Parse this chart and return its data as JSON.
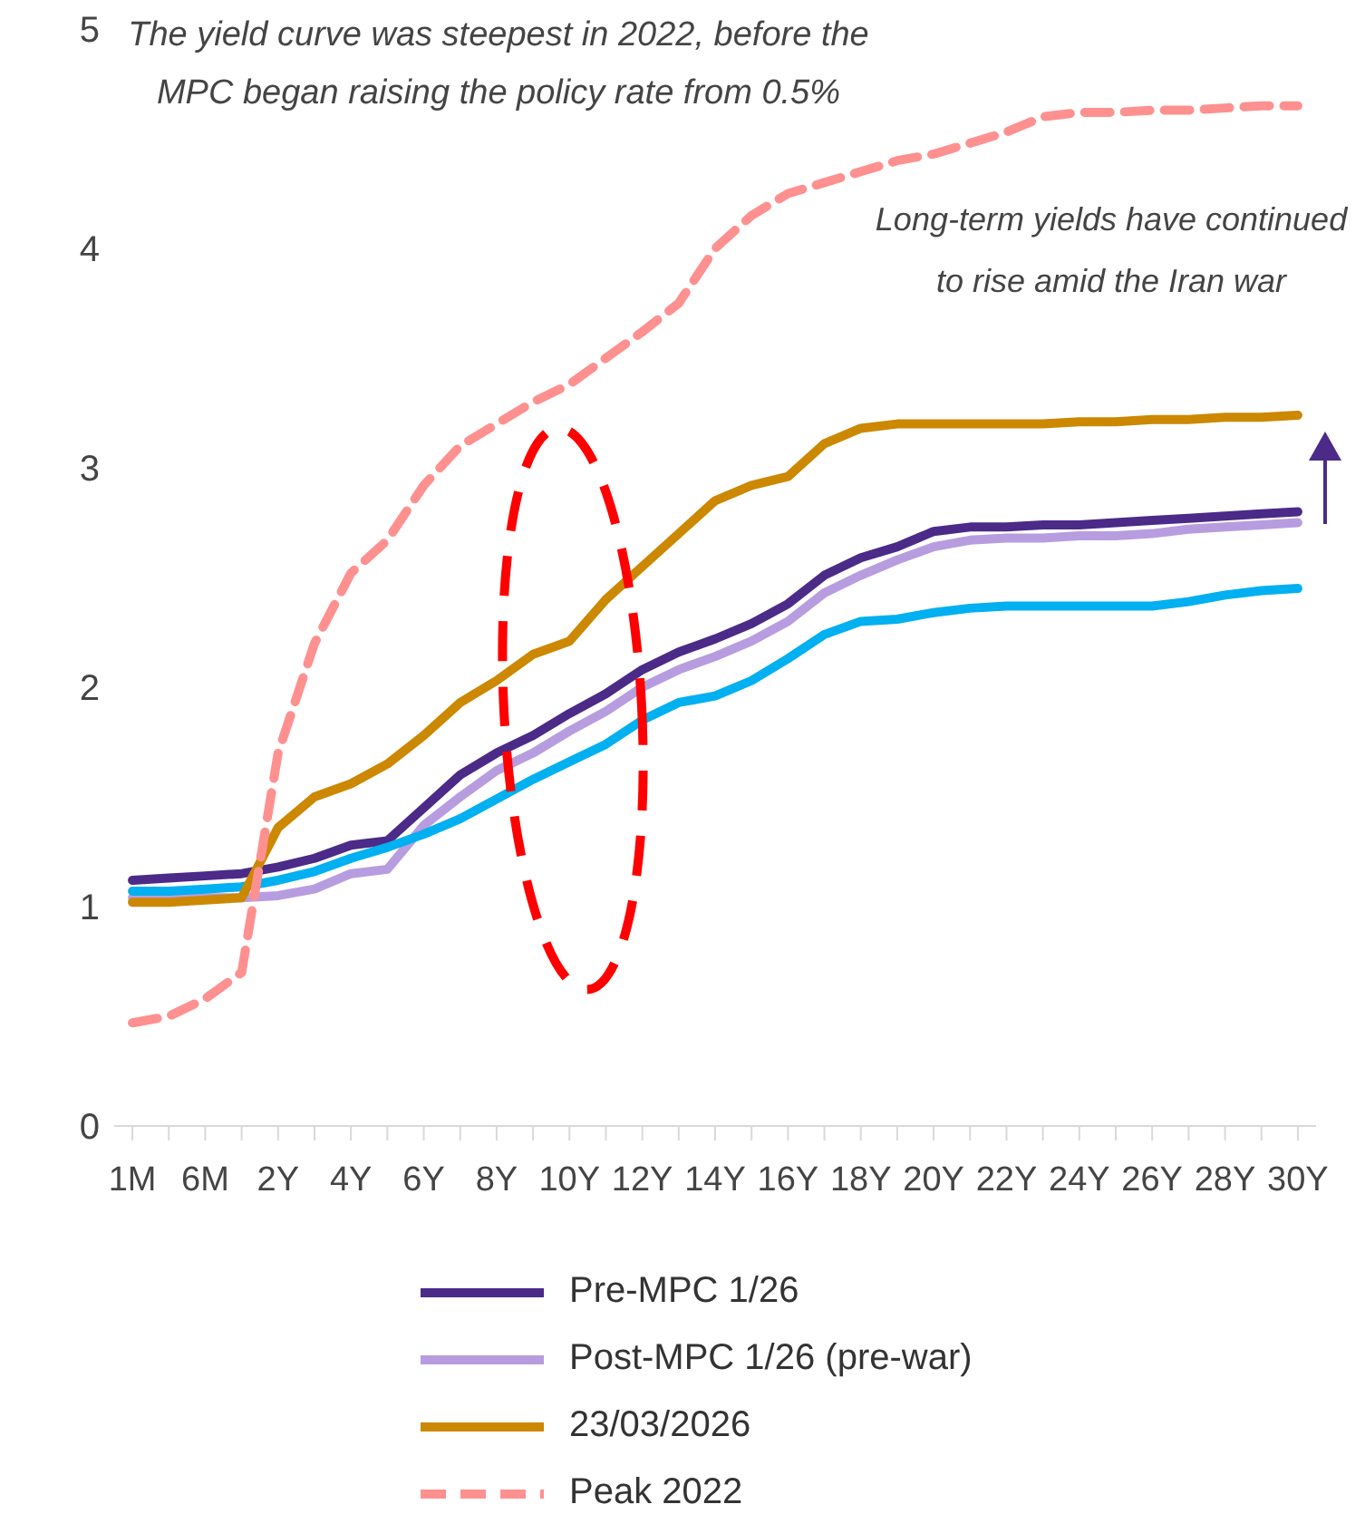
{
  "chart_data": {
    "type": "line",
    "categories": [
      "1M",
      null,
      "6M",
      null,
      "2Y",
      null,
      "4Y",
      null,
      "6Y",
      null,
      "8Y",
      null,
      "10Y",
      null,
      "12Y",
      null,
      "14Y",
      null,
      "16Y",
      null,
      "18Y",
      null,
      "20Y",
      null,
      "22Y",
      null,
      "24Y",
      null,
      "26Y",
      null,
      "28Y",
      null,
      "30Y"
    ],
    "series": [
      {
        "name": "Pre-MPC 1/26",
        "color": "#4b2a88",
        "values": [
          1.12,
          1.13,
          1.14,
          1.15,
          1.18,
          1.22,
          1.28,
          1.3,
          1.45,
          1.6,
          1.7,
          1.78,
          1.88,
          1.97,
          2.08,
          2.16,
          2.22,
          2.29,
          2.38,
          2.51,
          2.59,
          2.64,
          2.71,
          2.73,
          2.73,
          2.74,
          2.74,
          2.75,
          2.76,
          2.77,
          2.78,
          2.79,
          2.8
        ]
      },
      {
        "name": "Post-MPC 1/26 (pre-war)",
        "color": "#b79de0",
        "values": [
          1.04,
          1.04,
          1.04,
          1.04,
          1.05,
          1.08,
          1.15,
          1.17,
          1.37,
          1.5,
          1.62,
          1.7,
          1.8,
          1.89,
          2.0,
          2.08,
          2.14,
          2.21,
          2.3,
          2.43,
          2.51,
          2.58,
          2.64,
          2.67,
          2.68,
          2.68,
          2.69,
          2.69,
          2.7,
          2.72,
          2.73,
          2.74,
          2.75
        ]
      },
      {
        "color": "#00b0f0",
        "values": [
          1.07,
          1.07,
          1.08,
          1.09,
          1.12,
          1.16,
          1.22,
          1.27,
          1.33,
          1.4,
          1.49,
          1.58,
          1.66,
          1.74,
          1.85,
          1.93,
          1.96,
          2.03,
          2.13,
          2.24,
          2.3,
          2.31,
          2.34,
          2.36,
          2.37,
          2.37,
          2.37,
          2.37,
          2.37,
          2.39,
          2.42,
          2.44,
          2.45
        ]
      },
      {
        "name": "23/03/2026",
        "color": "#cc8800",
        "values": [
          1.02,
          1.02,
          1.03,
          1.04,
          1.36,
          1.5,
          1.56,
          1.65,
          1.78,
          1.93,
          2.03,
          2.15,
          2.21,
          2.4,
          2.55,
          2.7,
          2.85,
          2.92,
          2.96,
          3.11,
          3.18,
          3.2,
          3.2,
          3.2,
          3.2,
          3.2,
          3.21,
          3.21,
          3.22,
          3.22,
          3.23,
          3.23,
          3.24
        ]
      },
      {
        "name": "Peak 2022",
        "color": "#ff9090",
        "line_style": "dashed",
        "values": [
          0.47,
          0.5,
          0.58,
          0.7,
          1.7,
          2.2,
          2.52,
          2.67,
          2.92,
          3.1,
          3.2,
          3.3,
          3.38,
          3.5,
          3.62,
          3.75,
          4.0,
          4.15,
          4.25,
          4.3,
          4.35,
          4.4,
          4.43,
          4.48,
          4.53,
          4.6,
          4.62,
          4.62,
          4.63,
          4.63,
          4.64,
          4.65,
          4.65
        ]
      }
    ],
    "ylim": [
      0,
      5
    ],
    "yticks": [
      0,
      1,
      2,
      3,
      4,
      5
    ],
    "grid": false,
    "legend": "bottom",
    "marker": "none",
    "line_style": "solid",
    "annotations": [
      "The yield curve was steepest in 2022, before the MPC began raising the policy rate from 0.5%",
      "Long-term yields have continued to rise amid the Iran war"
    ]
  }
}
